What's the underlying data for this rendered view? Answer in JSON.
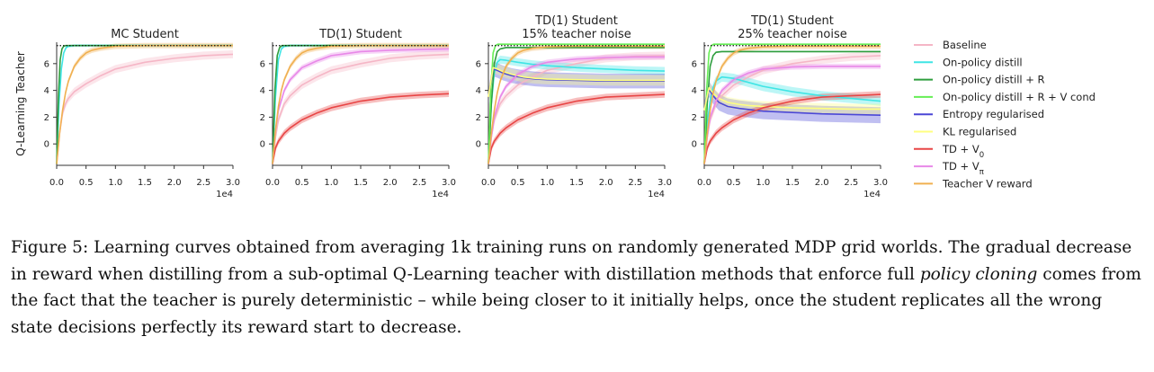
{
  "chart_data": [
    {
      "type": "line",
      "title": "MC Student",
      "ylabel": "Q-Learning Teacher",
      "xlim": [
        0,
        30000
      ],
      "ylim": [
        -1.6,
        7.6
      ],
      "x_ticks": [
        "0.0",
        "0.5",
        "1.0",
        "1.5",
        "2.0",
        "2.5",
        "3.0"
      ],
      "x_tick_values": [
        0,
        5000,
        10000,
        15000,
        20000,
        25000,
        30000
      ],
      "x_offset_label": "1e4",
      "y_ticks": [
        "0",
        "2",
        "4",
        "6"
      ],
      "y_tick_values": [
        0,
        2,
        4,
        6
      ],
      "reference_line": 7.35,
      "series": [
        {
          "name": "Baseline",
          "color": "#f5b6c6",
          "x": [
            0,
            500,
            1000,
            1500,
            2000,
            3000,
            5000,
            7500,
            10000,
            15000,
            20000,
            25000,
            30000
          ],
          "y": [
            -1.5,
            0.8,
            2.3,
            3.0,
            3.4,
            3.9,
            4.5,
            5.1,
            5.6,
            6.1,
            6.4,
            6.6,
            6.7
          ],
          "band": 0.3
        },
        {
          "name": "On-policy distill",
          "color": "#3fe5e5",
          "x": [
            0,
            400,
            800,
            1200,
            1600,
            2000,
            3000,
            5000,
            30000
          ],
          "y": [
            -1.5,
            3.0,
            5.6,
            6.8,
            7.2,
            7.3,
            7.35,
            7.35,
            7.35
          ],
          "band": 0.1
        },
        {
          "name": "On-policy distill + R",
          "color": "#2e9e3e",
          "x": [
            0,
            300,
            600,
            900,
            1200,
            1500,
            2000,
            3000,
            30000
          ],
          "y": [
            -1.5,
            3.5,
            6.3,
            7.1,
            7.3,
            7.35,
            7.35,
            7.35,
            7.35
          ],
          "band": 0.05
        },
        {
          "name": "Teacher V reward",
          "color": "#f0b050",
          "x": [
            0,
            500,
            1000,
            1500,
            2000,
            3000,
            4000,
            5000,
            6000,
            7500,
            10000,
            15000,
            20000,
            30000
          ],
          "y": [
            -1.5,
            0.8,
            2.5,
            3.8,
            4.7,
            5.8,
            6.4,
            6.8,
            7.0,
            7.15,
            7.3,
            7.35,
            7.35,
            7.35
          ],
          "band": 0.2
        }
      ]
    },
    {
      "type": "line",
      "title": "TD(1) Student",
      "xlim": [
        0,
        30000
      ],
      "ylim": [
        -1.6,
        7.6
      ],
      "x_ticks": [
        "0.0",
        "0.5",
        "1.0",
        "1.5",
        "2.0",
        "2.5",
        "3.0"
      ],
      "x_tick_values": [
        0,
        5000,
        10000,
        15000,
        20000,
        25000,
        30000
      ],
      "x_offset_label": "1e4",
      "y_ticks": [
        "0",
        "2",
        "4",
        "6"
      ],
      "y_tick_values": [
        0,
        2,
        4,
        6
      ],
      "reference_line": 7.35,
      "series": [
        {
          "name": "Baseline",
          "color": "#f5b6c6",
          "x": [
            0,
            500,
            1000,
            2000,
            3000,
            5000,
            7500,
            10000,
            15000,
            20000,
            25000,
            30000
          ],
          "y": [
            -1.5,
            0.5,
            1.8,
            3.0,
            3.6,
            4.4,
            5.0,
            5.5,
            6.0,
            6.4,
            6.6,
            6.7
          ],
          "band": 0.3
        },
        {
          "name": "On-policy distill",
          "color": "#3fe5e5",
          "x": [
            0,
            500,
            1000,
            1500,
            2000,
            3000,
            5000,
            30000
          ],
          "y": [
            -1.5,
            3.5,
            6.3,
            7.1,
            7.3,
            7.35,
            7.35,
            7.35
          ],
          "band": 0.1
        },
        {
          "name": "On-policy distill + R",
          "color": "#2e9e3e",
          "x": [
            0,
            400,
            800,
            1200,
            1600,
            2500,
            30000
          ],
          "y": [
            -1.5,
            4.0,
            6.6,
            7.2,
            7.35,
            7.35,
            7.35
          ],
          "band": 0.05
        },
        {
          "name": "TD + V_0",
          "color": "#e84545",
          "x": [
            0,
            500,
            1000,
            2000,
            3000,
            5000,
            7500,
            10000,
            15000,
            20000,
            25000,
            30000
          ],
          "y": [
            -1.5,
            -0.3,
            0.2,
            0.8,
            1.2,
            1.8,
            2.3,
            2.7,
            3.2,
            3.5,
            3.65,
            3.75
          ],
          "band": 0.25
        },
        {
          "name": "TD + V_π",
          "color": "#e888e8",
          "x": [
            0,
            500,
            1000,
            2000,
            3000,
            5000,
            7500,
            10000,
            15000,
            20000,
            25000,
            30000
          ],
          "y": [
            -1.5,
            1.0,
            2.5,
            4.0,
            4.8,
            5.7,
            6.2,
            6.6,
            6.9,
            7.0,
            7.05,
            7.1
          ],
          "band": 0.2
        },
        {
          "name": "Teacher V reward",
          "color": "#f0b050",
          "x": [
            0,
            500,
            1000,
            1500,
            2000,
            3000,
            4000,
            5000,
            6000,
            7500,
            10000,
            15000,
            20000,
            30000
          ],
          "y": [
            -1.5,
            1.0,
            2.8,
            4.0,
            4.8,
            5.8,
            6.4,
            6.8,
            7.0,
            7.15,
            7.3,
            7.35,
            7.35,
            7.35
          ],
          "band": 0.2
        }
      ]
    },
    {
      "type": "line",
      "title": "TD(1) Student",
      "subtitle": "15% teacher noise",
      "xlim": [
        0,
        30000
      ],
      "ylim": [
        -1.6,
        7.6
      ],
      "x_ticks": [
        "0.0",
        "0.5",
        "1.0",
        "1.5",
        "2.0",
        "2.5",
        "3.0"
      ],
      "x_tick_values": [
        0,
        5000,
        10000,
        15000,
        20000,
        25000,
        30000
      ],
      "x_offset_label": "1e4",
      "y_ticks": [
        "0",
        "2",
        "4",
        "6"
      ],
      "y_tick_values": [
        0,
        2,
        4,
        6
      ],
      "reference_line": 7.35,
      "series": [
        {
          "name": "Baseline",
          "color": "#f5b6c6",
          "x": [
            0,
            500,
            1000,
            2000,
            3000,
            5000,
            7500,
            10000,
            15000,
            20000,
            25000,
            30000
          ],
          "y": [
            -1.5,
            0.5,
            1.8,
            3.0,
            3.6,
            4.4,
            5.0,
            5.5,
            6.0,
            6.4,
            6.55,
            6.6
          ],
          "band": 0.3
        },
        {
          "name": "On-policy distill",
          "color": "#3fe5e5",
          "x": [
            0,
            500,
            1000,
            1500,
            2000,
            3000,
            5000,
            7500,
            10000,
            15000,
            20000,
            25000,
            30000
          ],
          "y": [
            -1.5,
            3.0,
            5.3,
            6.1,
            6.3,
            6.25,
            6.1,
            5.95,
            5.85,
            5.7,
            5.6,
            5.5,
            5.45
          ],
          "band": 0.3
        },
        {
          "name": "On-policy distill + R",
          "color": "#2e9e3e",
          "x": [
            0,
            500,
            1000,
            1500,
            2000,
            3000,
            5000,
            10000,
            30000
          ],
          "y": [
            -1.5,
            3.0,
            6.0,
            6.9,
            7.1,
            7.2,
            7.2,
            7.2,
            7.2
          ],
          "band": 0.05
        },
        {
          "name": "On-policy distill + R + V cond",
          "color": "#66ee55",
          "x": [
            0,
            400,
            800,
            1200,
            1600,
            2500,
            5000,
            30000
          ],
          "y": [
            -1.5,
            4.0,
            6.8,
            7.35,
            7.45,
            7.45,
            7.45,
            7.45
          ],
          "band": 0.05
        },
        {
          "name": "Entropy regularised",
          "color": "#4b47d6",
          "x": [
            0,
            800,
            1500,
            2500,
            4000,
            6000,
            8000,
            10000,
            15000,
            20000,
            25000,
            30000
          ],
          "y": [
            3.5,
            5.6,
            5.5,
            5.3,
            5.1,
            4.95,
            4.85,
            4.8,
            4.75,
            4.7,
            4.7,
            4.7
          ],
          "band": 0.55
        },
        {
          "name": "KL regularised",
          "color": "#ffff80",
          "x": [
            0,
            800,
            1500,
            2500,
            4000,
            6000,
            8000,
            10000,
            15000,
            20000,
            25000,
            30000
          ],
          "y": [
            3.5,
            5.7,
            5.6,
            5.4,
            5.2,
            5.0,
            4.9,
            4.85,
            4.8,
            4.75,
            4.75,
            4.75
          ],
          "band": 0.4
        },
        {
          "name": "TD + V_0",
          "color": "#e84545",
          "x": [
            0,
            500,
            1000,
            2000,
            3000,
            5000,
            7500,
            10000,
            15000,
            20000,
            25000,
            30000
          ],
          "y": [
            -1.5,
            -0.3,
            0.2,
            0.8,
            1.2,
            1.8,
            2.3,
            2.7,
            3.2,
            3.5,
            3.6,
            3.7
          ],
          "band": 0.25
        },
        {
          "name": "TD + V_π",
          "color": "#e888e8",
          "x": [
            0,
            500,
            1000,
            2000,
            3000,
            5000,
            7500,
            10000,
            15000,
            20000,
            25000,
            30000
          ],
          "y": [
            -1.5,
            0.5,
            2.0,
            3.5,
            4.3,
            5.2,
            5.8,
            6.1,
            6.35,
            6.45,
            6.5,
            6.5
          ],
          "band": 0.2
        },
        {
          "name": "Teacher V reward",
          "color": "#f0b050",
          "x": [
            0,
            500,
            1000,
            1500,
            2000,
            3000,
            4000,
            5000,
            6000,
            7500,
            10000,
            15000,
            20000,
            30000
          ],
          "y": [
            -1.5,
            0.8,
            2.5,
            3.8,
            4.7,
            5.8,
            6.4,
            6.8,
            7.0,
            7.15,
            7.25,
            7.3,
            7.3,
            7.3
          ],
          "band": 0.2
        }
      ]
    },
    {
      "type": "line",
      "title": "TD(1) Student",
      "subtitle": "25% teacher noise",
      "xlim": [
        0,
        30000
      ],
      "ylim": [
        -1.6,
        7.6
      ],
      "x_ticks": [
        "0.0",
        "0.5",
        "1.0",
        "1.5",
        "2.0",
        "2.5",
        "3.0"
      ],
      "x_tick_values": [
        0,
        5000,
        10000,
        15000,
        20000,
        25000,
        30000
      ],
      "x_offset_label": "1e4",
      "y_ticks": [
        "0",
        "2",
        "4",
        "6"
      ],
      "y_tick_values": [
        0,
        2,
        4,
        6
      ],
      "reference_line": 7.35,
      "series": [
        {
          "name": "Baseline",
          "color": "#f5b6c6",
          "x": [
            0,
            500,
            1000,
            2000,
            3000,
            5000,
            7500,
            10000,
            15000,
            20000,
            25000,
            30000
          ],
          "y": [
            -1.5,
            0.5,
            1.8,
            3.0,
            3.6,
            4.4,
            5.0,
            5.5,
            6.0,
            6.3,
            6.5,
            6.6
          ],
          "band": 0.3
        },
        {
          "name": "On-policy distill",
          "color": "#3fe5e5",
          "x": [
            0,
            500,
            1000,
            1500,
            2000,
            3000,
            5000,
            7500,
            10000,
            15000,
            20000,
            25000,
            30000
          ],
          "y": [
            -1.5,
            1.5,
            3.2,
            4.2,
            4.7,
            5.0,
            4.9,
            4.6,
            4.3,
            3.9,
            3.6,
            3.4,
            3.2
          ],
          "band": 0.35
        },
        {
          "name": "On-policy distill + R",
          "color": "#2e9e3e",
          "x": [
            0,
            500,
            1000,
            1500,
            2000,
            3000,
            5000,
            10000,
            30000
          ],
          "y": [
            -1.5,
            3.0,
            5.8,
            6.6,
            6.85,
            6.9,
            6.9,
            6.9,
            6.9
          ],
          "band": 0.05
        },
        {
          "name": "On-policy distill + R + V cond",
          "color": "#66ee55",
          "x": [
            0,
            400,
            800,
            1200,
            1600,
            2500,
            5000,
            30000
          ],
          "y": [
            -1.5,
            4.0,
            6.8,
            7.35,
            7.45,
            7.45,
            7.45,
            7.45
          ],
          "band": 0.05
        },
        {
          "name": "Entropy regularised",
          "color": "#4b47d6",
          "x": [
            0,
            800,
            1500,
            2500,
            4000,
            6000,
            8000,
            10000,
            15000,
            20000,
            25000,
            30000
          ],
          "y": [
            2.5,
            4.1,
            3.6,
            3.1,
            2.8,
            2.65,
            2.55,
            2.45,
            2.35,
            2.25,
            2.2,
            2.15
          ],
          "band": 0.6
        },
        {
          "name": "KL regularised",
          "color": "#ffff80",
          "x": [
            0,
            800,
            1500,
            2500,
            4000,
            6000,
            8000,
            10000,
            15000,
            20000,
            25000,
            30000
          ],
          "y": [
            2.5,
            4.2,
            3.8,
            3.4,
            3.1,
            2.95,
            2.85,
            2.8,
            2.7,
            2.65,
            2.6,
            2.6
          ],
          "band": 0.4
        },
        {
          "name": "TD + V_0",
          "color": "#e84545",
          "x": [
            0,
            500,
            1000,
            2000,
            3000,
            5000,
            7500,
            10000,
            15000,
            20000,
            25000,
            30000
          ],
          "y": [
            -1.5,
            -0.3,
            0.2,
            0.8,
            1.2,
            1.8,
            2.3,
            2.7,
            3.2,
            3.5,
            3.6,
            3.7
          ],
          "band": 0.25
        },
        {
          "name": "TD + V_π",
          "color": "#e888e8",
          "x": [
            0,
            500,
            1000,
            2000,
            3000,
            5000,
            7500,
            10000,
            15000,
            20000,
            25000,
            30000
          ],
          "y": [
            -1.5,
            0.5,
            2.0,
            3.2,
            4.0,
            4.8,
            5.3,
            5.6,
            5.75,
            5.8,
            5.8,
            5.8
          ],
          "band": 0.2
        },
        {
          "name": "Teacher V reward",
          "color": "#f0b050",
          "x": [
            0,
            500,
            1000,
            1500,
            2000,
            3000,
            4000,
            5000,
            6000,
            7500,
            10000,
            15000,
            20000,
            30000
          ],
          "y": [
            -1.5,
            0.8,
            2.5,
            3.8,
            4.7,
            5.8,
            6.4,
            6.8,
            7.0,
            7.15,
            7.25,
            7.3,
            7.3,
            7.3
          ],
          "band": 0.2
        }
      ]
    }
  ],
  "legend": [
    {
      "label": "Baseline",
      "color": "#f5b6c6"
    },
    {
      "label": "On-policy distill",
      "color": "#3fe5e5"
    },
    {
      "label": "On-policy distill + R",
      "color": "#2e9e3e"
    },
    {
      "label": "On-policy distill + R + V cond",
      "color": "#66ee55"
    },
    {
      "label": "Entropy regularised",
      "color": "#4b47d6"
    },
    {
      "label": "KL regularised",
      "color": "#ffff80"
    },
    {
      "label": "TD + V_0",
      "color": "#e84545"
    },
    {
      "label": "TD + V_π",
      "color": "#e888e8"
    },
    {
      "label": "Teacher V reward",
      "color": "#f0b050"
    }
  ],
  "caption": {
    "label": "Figure 5:",
    "text_1": " Learning curves obtained from averaging 1k training runs on randomly generated MDP grid worlds. The gradual decrease in reward when distilling from a sub-optimal Q-Learning teacher with distillation methods that enforce full ",
    "emphasis": "policy cloning",
    "text_2": " comes from the fact that the teacher is purely deterministic – while being closer to it initially helps, once the student replicates all the wrong state decisions perfectly its reward start to decrease."
  }
}
